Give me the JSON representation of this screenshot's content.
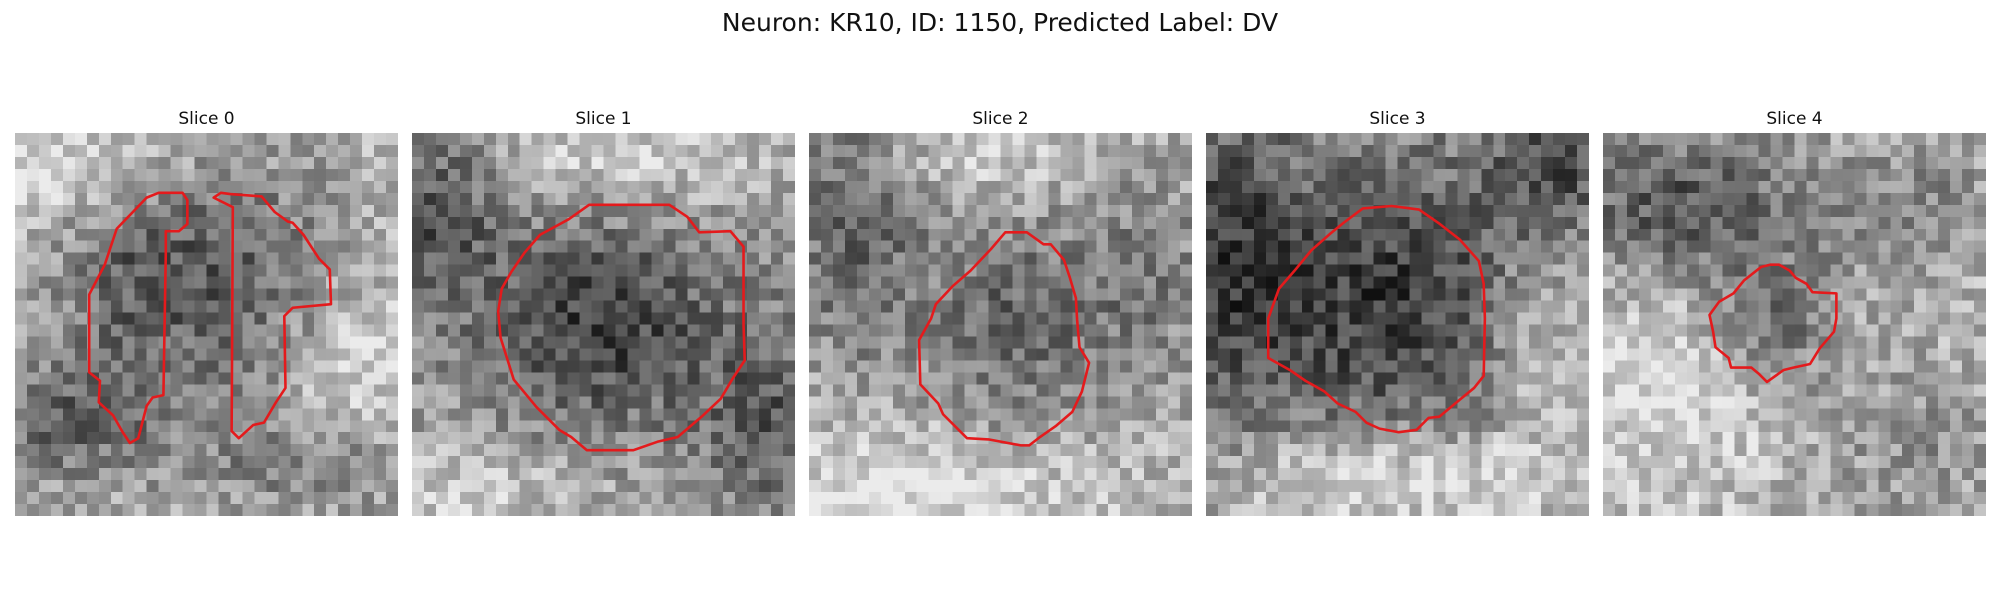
{
  "figure": {
    "title": "Neuron: KR10, ID: 1150, Predicted Label: DV",
    "contour_color": "#e41a1c"
  },
  "panels": [
    {
      "title": "Slice 0",
      "seed": 11,
      "field": "slice0"
    },
    {
      "title": "Slice 1",
      "seed": 23,
      "field": "slice1"
    },
    {
      "title": "Slice 2",
      "seed": 37,
      "field": "slice2"
    },
    {
      "title": "Slice 3",
      "seed": 41,
      "field": "slice3"
    },
    {
      "title": "Slice 4",
      "seed": 59,
      "field": "slice4"
    }
  ]
}
